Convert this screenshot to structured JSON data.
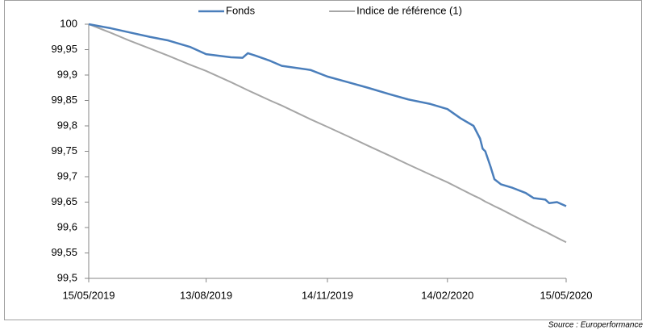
{
  "chart_data": {
    "type": "line",
    "x": [
      "15/05/2019",
      "01/06/2019",
      "15/06/2019",
      "01/07/2019",
      "15/07/2019",
      "01/08/2019",
      "13/08/2019",
      "01/09/2019",
      "10/09/2019",
      "14/09/2019",
      "20/09/2019",
      "01/10/2019",
      "10/10/2019",
      "01/11/2019",
      "14/11/2019",
      "01/12/2019",
      "15/12/2019",
      "01/01/2020",
      "15/01/2020",
      "01/02/2020",
      "14/02/2020",
      "24/02/2020",
      "05/03/2020",
      "10/03/2020",
      "12/03/2020",
      "14/03/2020",
      "18/03/2020",
      "21/03/2020",
      "26/03/2020",
      "04/04/2020",
      "14/04/2020",
      "20/04/2020",
      "29/04/2020",
      "02/05/2020",
      "08/05/2020",
      "15/05/2020"
    ],
    "series": [
      {
        "name": "Fonds",
        "color": "#4a7ebb",
        "values": [
          100,
          99.992,
          99.984,
          99.975,
          99.968,
          99.955,
          99.941,
          99.935,
          99.934,
          99.943,
          99.938,
          99.928,
          99.918,
          99.91,
          99.897,
          99.885,
          99.875,
          99.862,
          99.852,
          99.843,
          99.833,
          99.815,
          99.8,
          99.775,
          99.755,
          99.75,
          99.72,
          99.695,
          99.685,
          99.678,
          99.668,
          99.658,
          99.655,
          99.648,
          99.65,
          99.642
        ]
      },
      {
        "name": "Indice de référence (1)",
        "color": "#a6a6a6",
        "values": [
          100,
          99.983,
          99.968,
          99.952,
          99.938,
          99.92,
          99.908,
          99.886,
          99.875,
          99.87,
          99.863,
          99.85,
          99.84,
          99.813,
          99.798,
          99.778,
          99.761,
          99.741,
          99.724,
          99.704,
          99.689,
          99.676,
          99.663,
          99.657,
          99.654,
          99.651,
          99.646,
          99.642,
          99.636,
          99.624,
          99.611,
          99.603,
          99.592,
          99.588,
          99.58,
          99.571
        ]
      }
    ],
    "xlim": [
      "15/05/2019",
      "15/05/2020"
    ],
    "xticks": [
      "15/05/2019",
      "13/08/2019",
      "14/11/2019",
      "14/02/2020",
      "15/05/2020"
    ],
    "ylim": [
      99.5,
      100
    ],
    "yticks": [
      {
        "value": 99.5,
        "label": "99,5"
      },
      {
        "value": 99.55,
        "label": "99,55"
      },
      {
        "value": 99.6,
        "label": "99,6"
      },
      {
        "value": 99.65,
        "label": "99,65"
      },
      {
        "value": 99.7,
        "label": "99,7"
      },
      {
        "value": 99.75,
        "label": "99,75"
      },
      {
        "value": 99.8,
        "label": "99,8"
      },
      {
        "value": 99.85,
        "label": "99,85"
      },
      {
        "value": 99.9,
        "label": "99,9"
      },
      {
        "value": 99.95,
        "label": "99,95"
      },
      100
    ],
    "legend": "top",
    "source": "Source : Europerformance"
  }
}
